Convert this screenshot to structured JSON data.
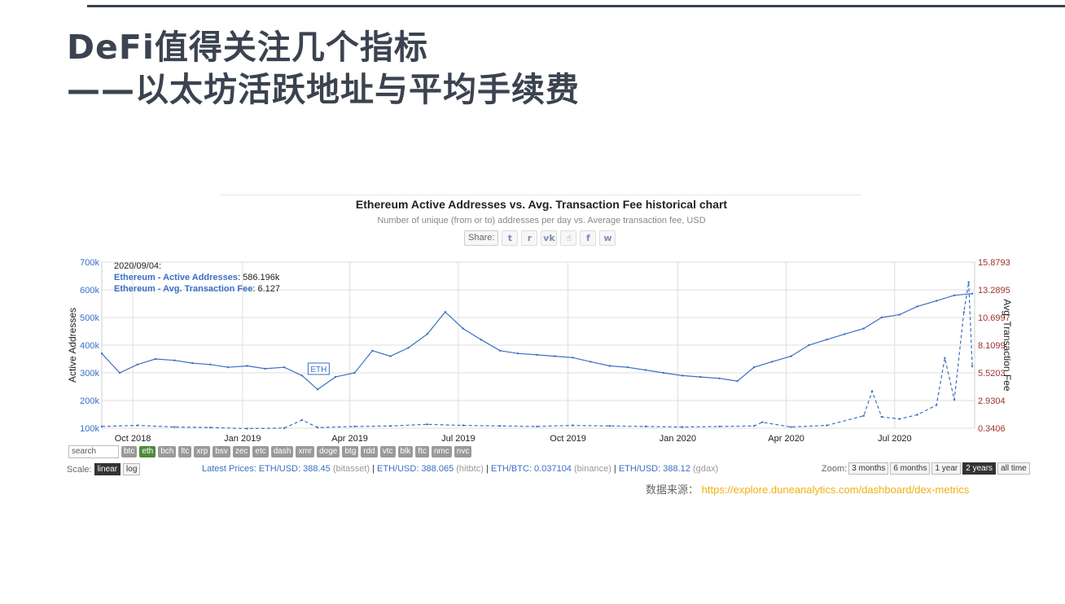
{
  "slide": {
    "title_line1": "DeFi值得关注几个指标",
    "title_line2": "——以太坊活跃地址与平均手续费",
    "source_label": "数据来源：",
    "source_url": "https://explore.duneanalytics.com/dashboard/dex-metrics"
  },
  "share": {
    "label": "Share:",
    "icons": [
      "twitter-icon",
      "reddit-icon",
      "vk-icon",
      "like-icon",
      "facebook-icon",
      "weibo-icon"
    ]
  },
  "tooltip": {
    "date": "2020/09/04:",
    "line1_label": "Ethereum - Active Addresses",
    "line1_value": ": 586.196k",
    "line2_label": "Ethereum - Avg. Transaction Fee",
    "line2_value": ": 6.127"
  },
  "flag_label": "ETH",
  "controls": {
    "search_placeholder": "search",
    "tickers": [
      "btc",
      "eth",
      "bch",
      "ltc",
      "xrp",
      "bsv",
      "zec",
      "etc",
      "dash",
      "xmr",
      "doge",
      "btg",
      "rdd",
      "vtc",
      "blk",
      "ftc",
      "nmc",
      "nvc"
    ],
    "active_ticker": "eth",
    "scale_label": "Scale:",
    "scale_options": [
      "linear",
      "log"
    ],
    "scale_active": "linear",
    "zoom_label": "Zoom:",
    "zoom_options": [
      "3 months",
      "6 months",
      "1 year",
      "2 years",
      "all time"
    ],
    "zoom_active": "2 years"
  },
  "latest_prices": {
    "label": "Latest Prices:",
    "items": [
      {
        "pair": "ETH/USD: 388.45",
        "src": "(bitasset)"
      },
      {
        "pair": "ETH/USD: 388.065",
        "src": "(hitbtc)"
      },
      {
        "pair": "ETH/BTC: 0.037104",
        "src": "(binance)"
      },
      {
        "pair": "ETH/USD: 388.12",
        "src": "(gdax)"
      }
    ]
  },
  "colors": {
    "series_line": "#3b6fc4",
    "right_axis": "#a0322a",
    "grid": "#dddddd",
    "title_text": "#3b4350",
    "source_link": "#f2b010"
  },
  "chart_data": {
    "type": "line",
    "title": "Ethereum Active Addresses vs. Avg. Transaction Fee historical chart",
    "subtitle": "Number of unique (from or to) addresses per day vs. Average transaction fee, USD",
    "xlabel": "",
    "ylabel": "Active Addresses",
    "y2label": "Avg. Transaction Fee",
    "x_ticks": [
      "Oct 2018",
      "Jan 2019",
      "Apr 2019",
      "Jul 2019",
      "Oct 2019",
      "Jan 2020",
      "Apr 2020",
      "Jul 2020"
    ],
    "y_ticks": [
      "100k",
      "200k",
      "300k",
      "400k",
      "500k",
      "600k",
      "700k"
    ],
    "y2_ticks": [
      "0.3406",
      "2.9304",
      "5.5203",
      "8.1099",
      "10.6997",
      "13.2895",
      "15.8793"
    ],
    "ylim": [
      100000,
      700000
    ],
    "y2lim": [
      0.3406,
      15.8793
    ],
    "xlim": [
      "2018-09-05",
      "2020-09-06"
    ],
    "series": [
      {
        "name": "Ethereum - Active Addresses",
        "axis": "left",
        "style": "solid",
        "x": [
          "2018-09-05",
          "2018-09-20",
          "2018-10-05",
          "2018-10-20",
          "2018-11-05",
          "2018-11-20",
          "2018-12-05",
          "2018-12-20",
          "2019-01-05",
          "2019-01-20",
          "2019-02-05",
          "2019-02-20",
          "2019-03-05",
          "2019-03-20",
          "2019-04-05",
          "2019-04-20",
          "2019-05-05",
          "2019-05-20",
          "2019-06-05",
          "2019-06-20",
          "2019-07-05",
          "2019-07-20",
          "2019-08-05",
          "2019-08-20",
          "2019-09-05",
          "2019-09-20",
          "2019-10-05",
          "2019-10-20",
          "2019-11-05",
          "2019-11-20",
          "2019-12-05",
          "2019-12-20",
          "2020-01-05",
          "2020-01-20",
          "2020-02-05",
          "2020-02-20",
          "2020-03-05",
          "2020-03-20",
          "2020-04-05",
          "2020-04-20",
          "2020-05-05",
          "2020-05-20",
          "2020-06-05",
          "2020-06-20",
          "2020-07-05",
          "2020-07-20",
          "2020-08-05",
          "2020-08-20",
          "2020-09-04"
        ],
        "values": [
          370000,
          300000,
          330000,
          350000,
          345000,
          335000,
          330000,
          320000,
          325000,
          315000,
          320000,
          290000,
          240000,
          285000,
          300000,
          380000,
          360000,
          390000,
          440000,
          520000,
          460000,
          420000,
          380000,
          370000,
          365000,
          360000,
          355000,
          340000,
          325000,
          320000,
          310000,
          300000,
          290000,
          285000,
          280000,
          270000,
          320000,
          340000,
          360000,
          400000,
          420000,
          440000,
          460000,
          500000,
          510000,
          540000,
          560000,
          580000,
          586196
        ]
      },
      {
        "name": "Ethereum - Avg. Transaction Fee",
        "axis": "right",
        "style": "dashed",
        "x": [
          "2018-09-05",
          "2018-10-05",
          "2018-11-05",
          "2018-12-05",
          "2019-01-05",
          "2019-02-05",
          "2019-02-20",
          "2019-03-05",
          "2019-04-05",
          "2019-05-05",
          "2019-06-05",
          "2019-07-05",
          "2019-08-05",
          "2019-09-05",
          "2019-10-05",
          "2019-11-05",
          "2019-12-05",
          "2020-01-05",
          "2020-02-05",
          "2020-03-05",
          "2020-03-12",
          "2020-04-05",
          "2020-05-05",
          "2020-06-05",
          "2020-06-12",
          "2020-06-20",
          "2020-07-05",
          "2020-07-20",
          "2020-08-05",
          "2020-08-12",
          "2020-08-20",
          "2020-08-28",
          "2020-09-01",
          "2020-09-04"
        ],
        "values": [
          0.5,
          0.6,
          0.45,
          0.4,
          0.3,
          0.35,
          1.1,
          0.4,
          0.5,
          0.55,
          0.7,
          0.6,
          0.55,
          0.5,
          0.6,
          0.55,
          0.5,
          0.45,
          0.5,
          0.55,
          0.9,
          0.45,
          0.6,
          1.5,
          3.8,
          1.4,
          1.2,
          1.6,
          2.5,
          6.9,
          3.0,
          11.2,
          14.0,
          6.127
        ]
      }
    ],
    "annotations": [
      "ETH"
    ],
    "grid": true,
    "legend": "tooltip top-left"
  }
}
